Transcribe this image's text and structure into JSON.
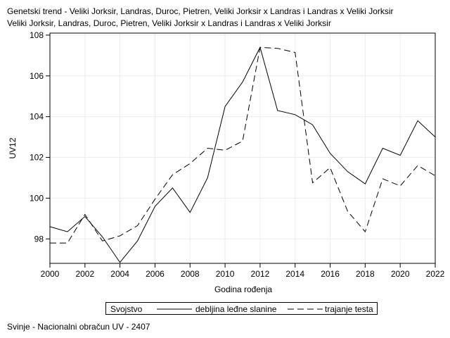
{
  "title_lines": [
    "Genetski trend - Veliki Jorksir, Landras, Duroc, Pietren, Veliki Jorksir x Landras i Landras x Veliki Jorksir",
    "Veliki Jorksir, Landras, Duroc, Pietren, Veliki Jorksir x Landras i Landras x Veliki Jorksir"
  ],
  "footnote": "Svinje - Nacionalni obračun UV - 2407",
  "legend": {
    "title": "Svojstvo",
    "items": [
      "debljina leđne slanine",
      "trajanje testa"
    ]
  },
  "chart_data": {
    "type": "line",
    "xlabel": "Godina rođenja",
    "ylabel": "UV12",
    "xlim": [
      2000,
      2022
    ],
    "ylim": [
      96.8,
      108.1
    ],
    "xticks": [
      2000,
      2002,
      2004,
      2006,
      2008,
      2010,
      2012,
      2014,
      2016,
      2018,
      2020,
      2022
    ],
    "yticks": [
      98,
      100,
      102,
      104,
      106,
      108
    ],
    "grid": true,
    "legend_position": "bottom",
    "x": [
      2000,
      2001,
      2002,
      2003,
      2004,
      2005,
      2006,
      2007,
      2008,
      2009,
      2010,
      2011,
      2012,
      2013,
      2014,
      2015,
      2016,
      2017,
      2018,
      2019,
      2020,
      2021,
      2022
    ],
    "series": [
      {
        "name": "debljina leđne slanine",
        "style": "solid",
        "values": [
          98.6,
          98.35,
          99.1,
          98.1,
          96.85,
          97.9,
          99.6,
          100.5,
          99.3,
          101.0,
          104.5,
          105.7,
          107.4,
          104.3,
          104.1,
          103.6,
          102.2,
          101.3,
          100.7,
          102.45,
          102.1,
          103.8,
          103.0
        ]
      },
      {
        "name": "trajanje testa",
        "style": "dashed",
        "values": [
          97.8,
          97.8,
          99.2,
          97.9,
          98.15,
          98.65,
          99.95,
          101.15,
          101.7,
          102.45,
          102.35,
          102.8,
          107.4,
          107.35,
          107.15,
          100.75,
          101.5,
          99.35,
          98.35,
          100.95,
          100.6,
          101.6,
          101.1
        ]
      }
    ]
  }
}
